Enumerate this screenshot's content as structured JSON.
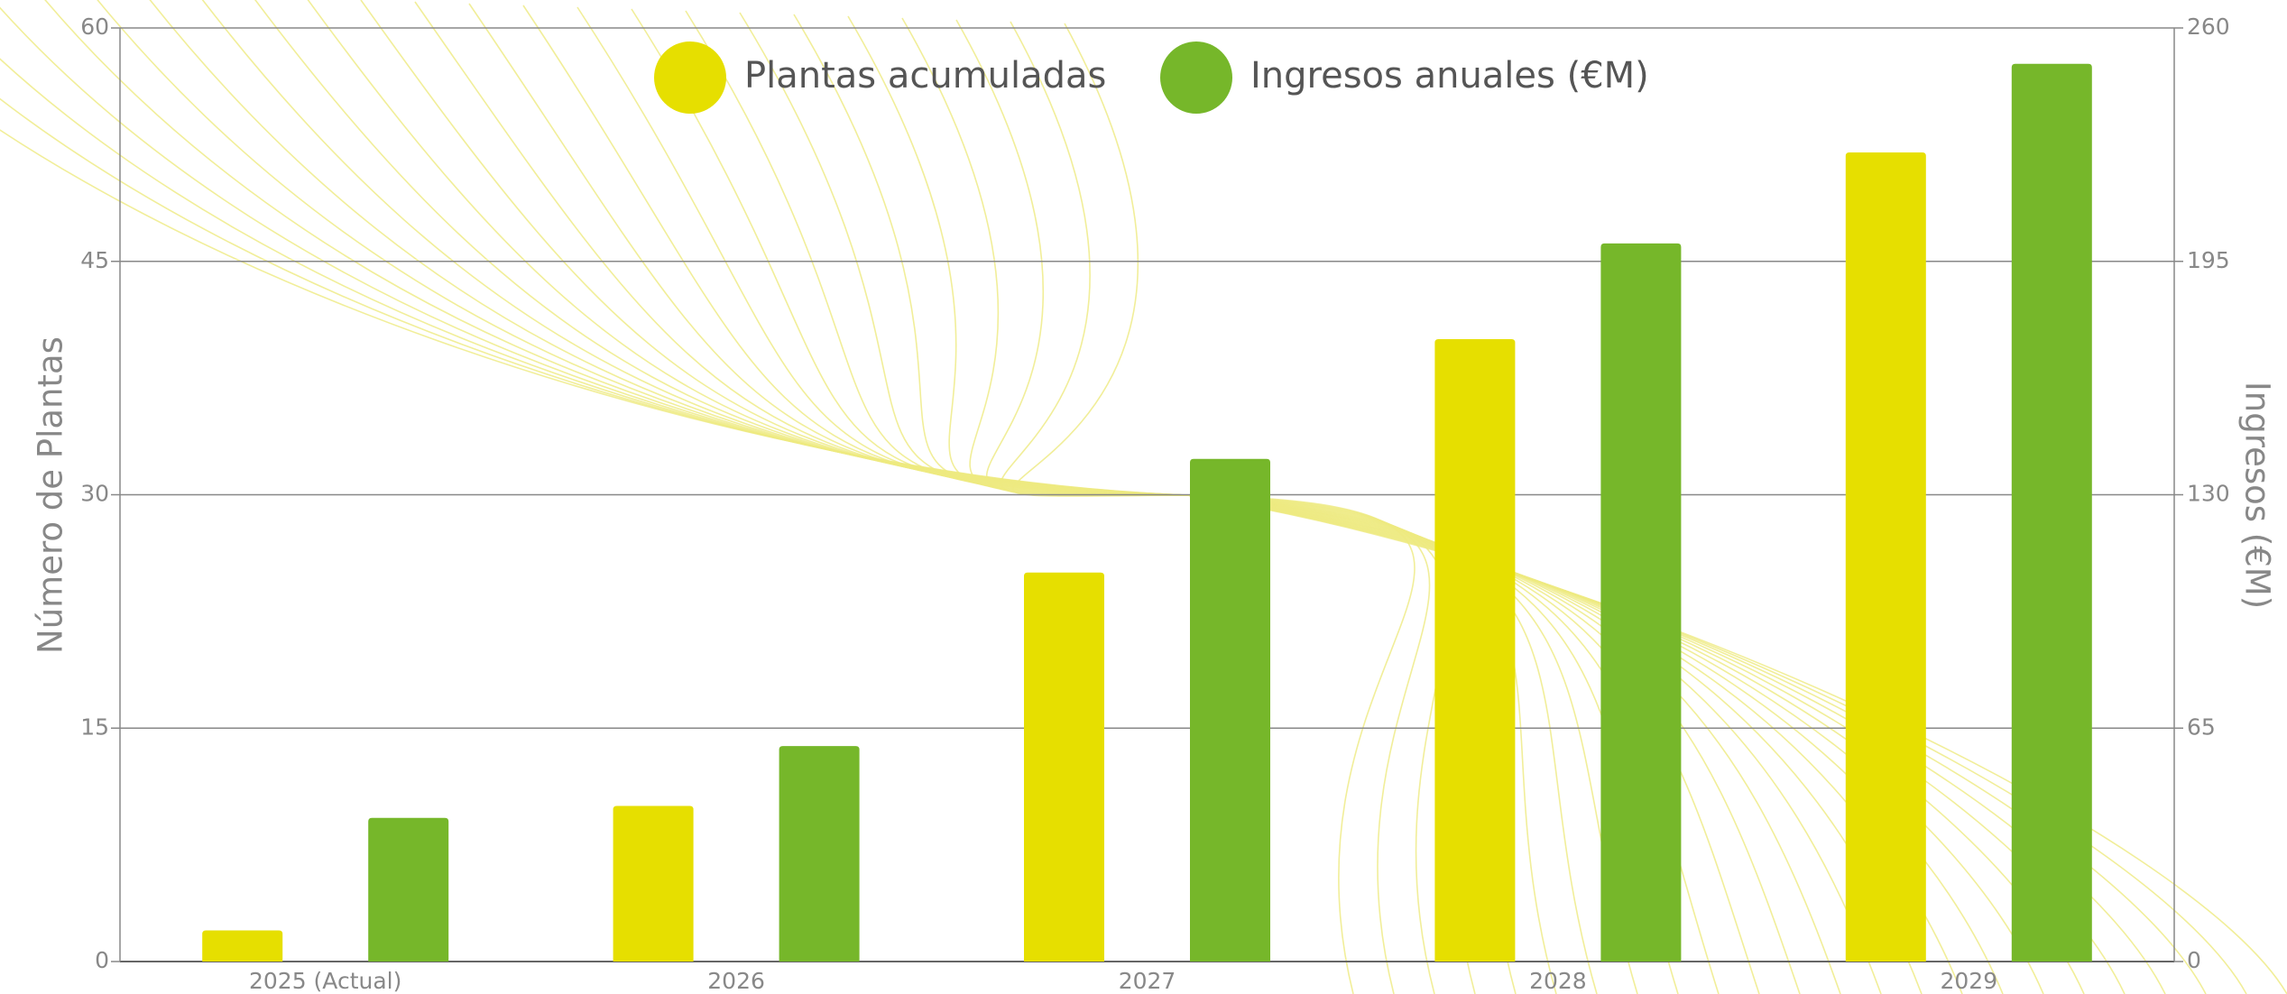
{
  "chart_data": {
    "type": "bar",
    "categories": [
      "2025 (Actual)",
      "2026",
      "2027",
      "2028",
      "2029"
    ],
    "series": [
      {
        "name": "Plantas acumuladas",
        "color": "#e6df00",
        "values": [
          2,
          10,
          25,
          40,
          52
        ]
      },
      {
        "name": "Ingresos anuales (€M)",
        "color": "#76b72a",
        "values": [
          40,
          60,
          140,
          200,
          250
        ],
        "axis": "y2"
      }
    ],
    "ylabel": "Número de Plantas",
    "y2label": "Ingresos (€M)",
    "ylim": [
      0,
      60
    ],
    "yticks": [
      0,
      15,
      30,
      45,
      60
    ],
    "y2lim": [
      0,
      260
    ],
    "y2ticks": [
      0,
      65,
      130,
      195,
      260
    ],
    "grid": true,
    "legend": "top"
  }
}
